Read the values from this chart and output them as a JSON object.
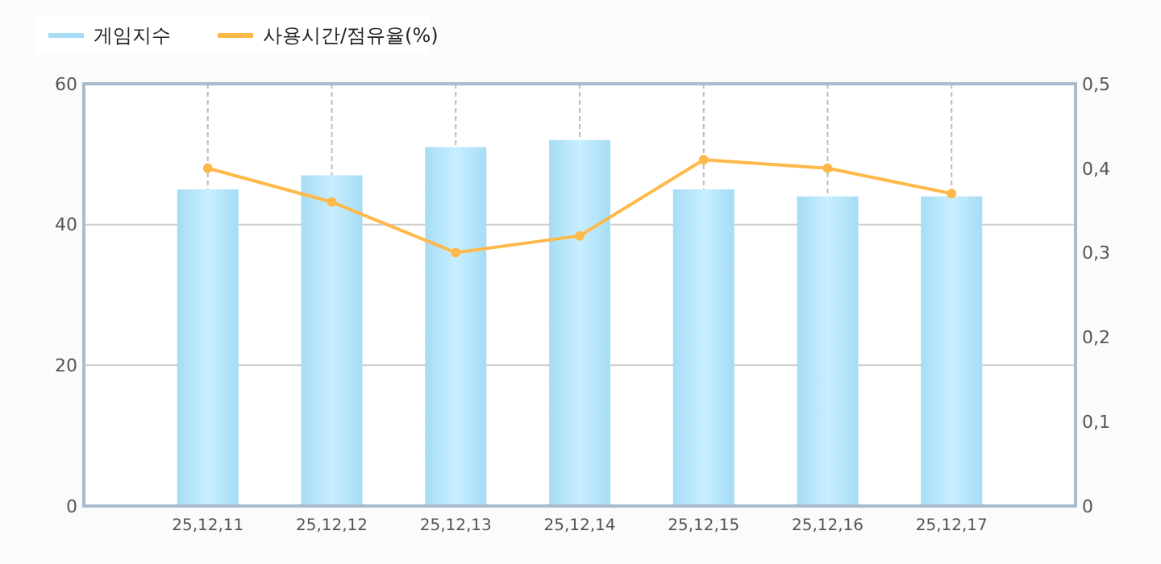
{
  "chart_data": {
    "type": "bar",
    "categories": [
      "25,12,11",
      "25,12,12",
      "25,12,13",
      "25,12,14",
      "25,12,15",
      "25,12,16",
      "25,12,17"
    ],
    "series": [
      {
        "name": "게임지수",
        "color": "#a6dcf5",
        "values": [
          45,
          47,
          51,
          52,
          45,
          44,
          44
        ]
      },
      {
        "name": "사용시간/점유율(%)",
        "type": "line",
        "axis": "y2",
        "color": "#ffb94a",
        "marker": "circle",
        "values": [
          0.4,
          0.36,
          0.3,
          0.32,
          0.41,
          0.4,
          0.37
        ]
      }
    ],
    "ylim": [
      0,
      60
    ],
    "yticks": [
      0,
      20,
      40,
      60
    ],
    "y2lim": [
      0,
      0.5
    ],
    "y2ticks": [
      0,
      {
        "value": 0.1,
        "label": "0,1"
      },
      {
        "value": 0.2,
        "label": "0,2"
      },
      {
        "value": 0.3,
        "label": "0,3"
      },
      {
        "value": 0.4,
        "label": "0,4"
      },
      {
        "value": 0.5,
        "label": "0,5"
      }
    ],
    "grid": true,
    "legend": "top left"
  }
}
